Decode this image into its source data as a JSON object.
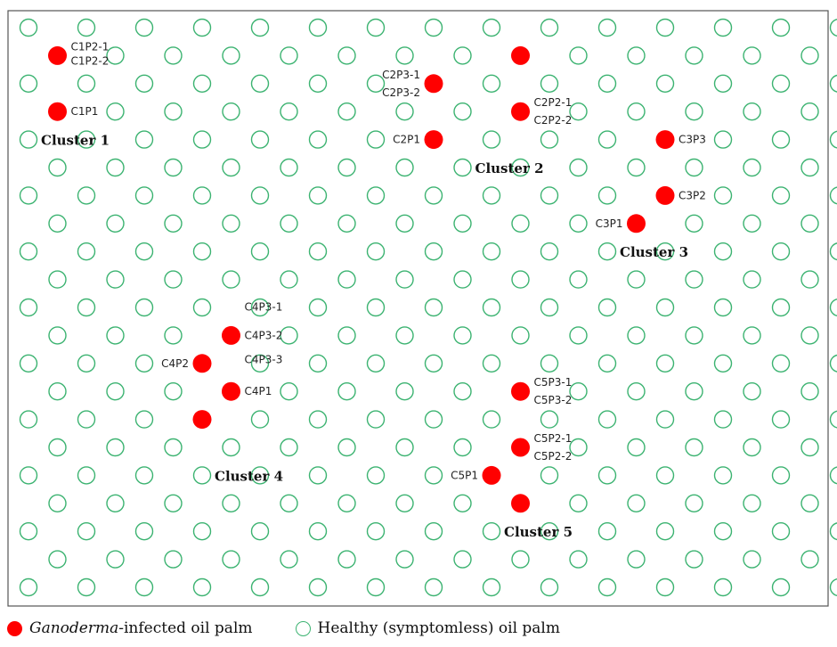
{
  "colors": {
    "infected": "#ff0000",
    "healthy": "#3cb371",
    "frame": "#555555"
  },
  "grid": {
    "rows": 21,
    "odd_rows_per": 15,
    "even_rows_per": 14
  },
  "infected_palms": [
    {
      "row": 1,
      "col": 0
    },
    {
      "row": 1,
      "col": 8
    },
    {
      "row": 2,
      "col": 7
    },
    {
      "row": 3,
      "col": 0
    },
    {
      "row": 3,
      "col": 8
    },
    {
      "row": 4,
      "col": 7
    },
    {
      "row": 4,
      "col": 11
    },
    {
      "row": 6,
      "col": 11
    },
    {
      "row": 7,
      "col": 10
    },
    {
      "row": 11,
      "col": 3
    },
    {
      "row": 12,
      "col": 3
    },
    {
      "row": 13,
      "col": 3
    },
    {
      "row": 13,
      "col": 8
    },
    {
      "row": 14,
      "col": 3
    },
    {
      "row": 15,
      "col": 8
    },
    {
      "row": 16,
      "col": 8
    },
    {
      "row": 17,
      "col": 8
    }
  ],
  "palm_labels": [
    {
      "text": "C1P2-1",
      "anchor": [
        0,
        1
      ],
      "dy": -6
    },
    {
      "text": "C1P2-2",
      "anchor": [
        0,
        1
      ],
      "dy": 10
    },
    {
      "text": "C1P1",
      "anchor": [
        0,
        3
      ],
      "dy": 4
    },
    {
      "text": "C2P3-1",
      "anchor": [
        7,
        2
      ],
      "dy": -6,
      "side": "left"
    },
    {
      "text": "C2P3-2",
      "anchor": [
        7,
        2
      ],
      "dy": 14,
      "side": "left"
    },
    {
      "text": "C2P2-1",
      "anchor": [
        8,
        3
      ],
      "dy": -6
    },
    {
      "text": "C2P2-2",
      "anchor": [
        8,
        3
      ],
      "dy": 14
    },
    {
      "text": "C2P1",
      "anchor": [
        7,
        4
      ],
      "dy": 4,
      "side": "left"
    },
    {
      "text": "C3P3",
      "anchor": [
        11,
        4
      ],
      "dy": 4
    },
    {
      "text": "C3P2",
      "anchor": [
        11,
        6
      ],
      "dy": 4
    },
    {
      "text": "C3P1",
      "anchor": [
        10,
        7
      ],
      "dy": 4,
      "side": "left"
    },
    {
      "text": "C4P3-1",
      "anchor": [
        3,
        11
      ],
      "dy": -28
    },
    {
      "text": "C4P3-2",
      "anchor": [
        3,
        11
      ],
      "dy": 4
    },
    {
      "text": "C4P3-3",
      "anchor": [
        3,
        11
      ],
      "dy": 31
    },
    {
      "text": "C4P2",
      "anchor": [
        3,
        12
      ],
      "dy": 4,
      "side": "left"
    },
    {
      "text": "C4P1",
      "anchor": [
        3,
        13
      ],
      "dy": 4
    },
    {
      "text": "C5P3-1",
      "anchor": [
        8,
        13
      ],
      "dy": -6
    },
    {
      "text": "C5P3-2",
      "anchor": [
        8,
        13
      ],
      "dy": 14
    },
    {
      "text": "C5P2-1",
      "anchor": [
        8,
        15
      ],
      "dy": -6
    },
    {
      "text": "C5P2-2",
      "anchor": [
        8,
        15
      ],
      "dy": 14
    },
    {
      "text": "C5P1",
      "anchor": [
        8,
        16
      ],
      "dy": 4,
      "side": "left"
    }
  ],
  "cluster_labels": [
    {
      "text": "Cluster 1",
      "anchor": [
        0,
        4
      ]
    },
    {
      "text": "Cluster 2",
      "anchor": [
        7,
        5
      ]
    },
    {
      "text": "Cluster 3",
      "anchor": [
        10,
        8
      ]
    },
    {
      "text": "Cluster 4",
      "anchor": [
        3,
        16
      ]
    },
    {
      "text": "Cluster 5",
      "anchor": [
        8,
        18
      ]
    }
  ],
  "legend": {
    "infected_italic": "Ganoderma",
    "infected_rest": "-infected oil palm",
    "healthy_text": "Healthy (symptomless) oil palm"
  }
}
